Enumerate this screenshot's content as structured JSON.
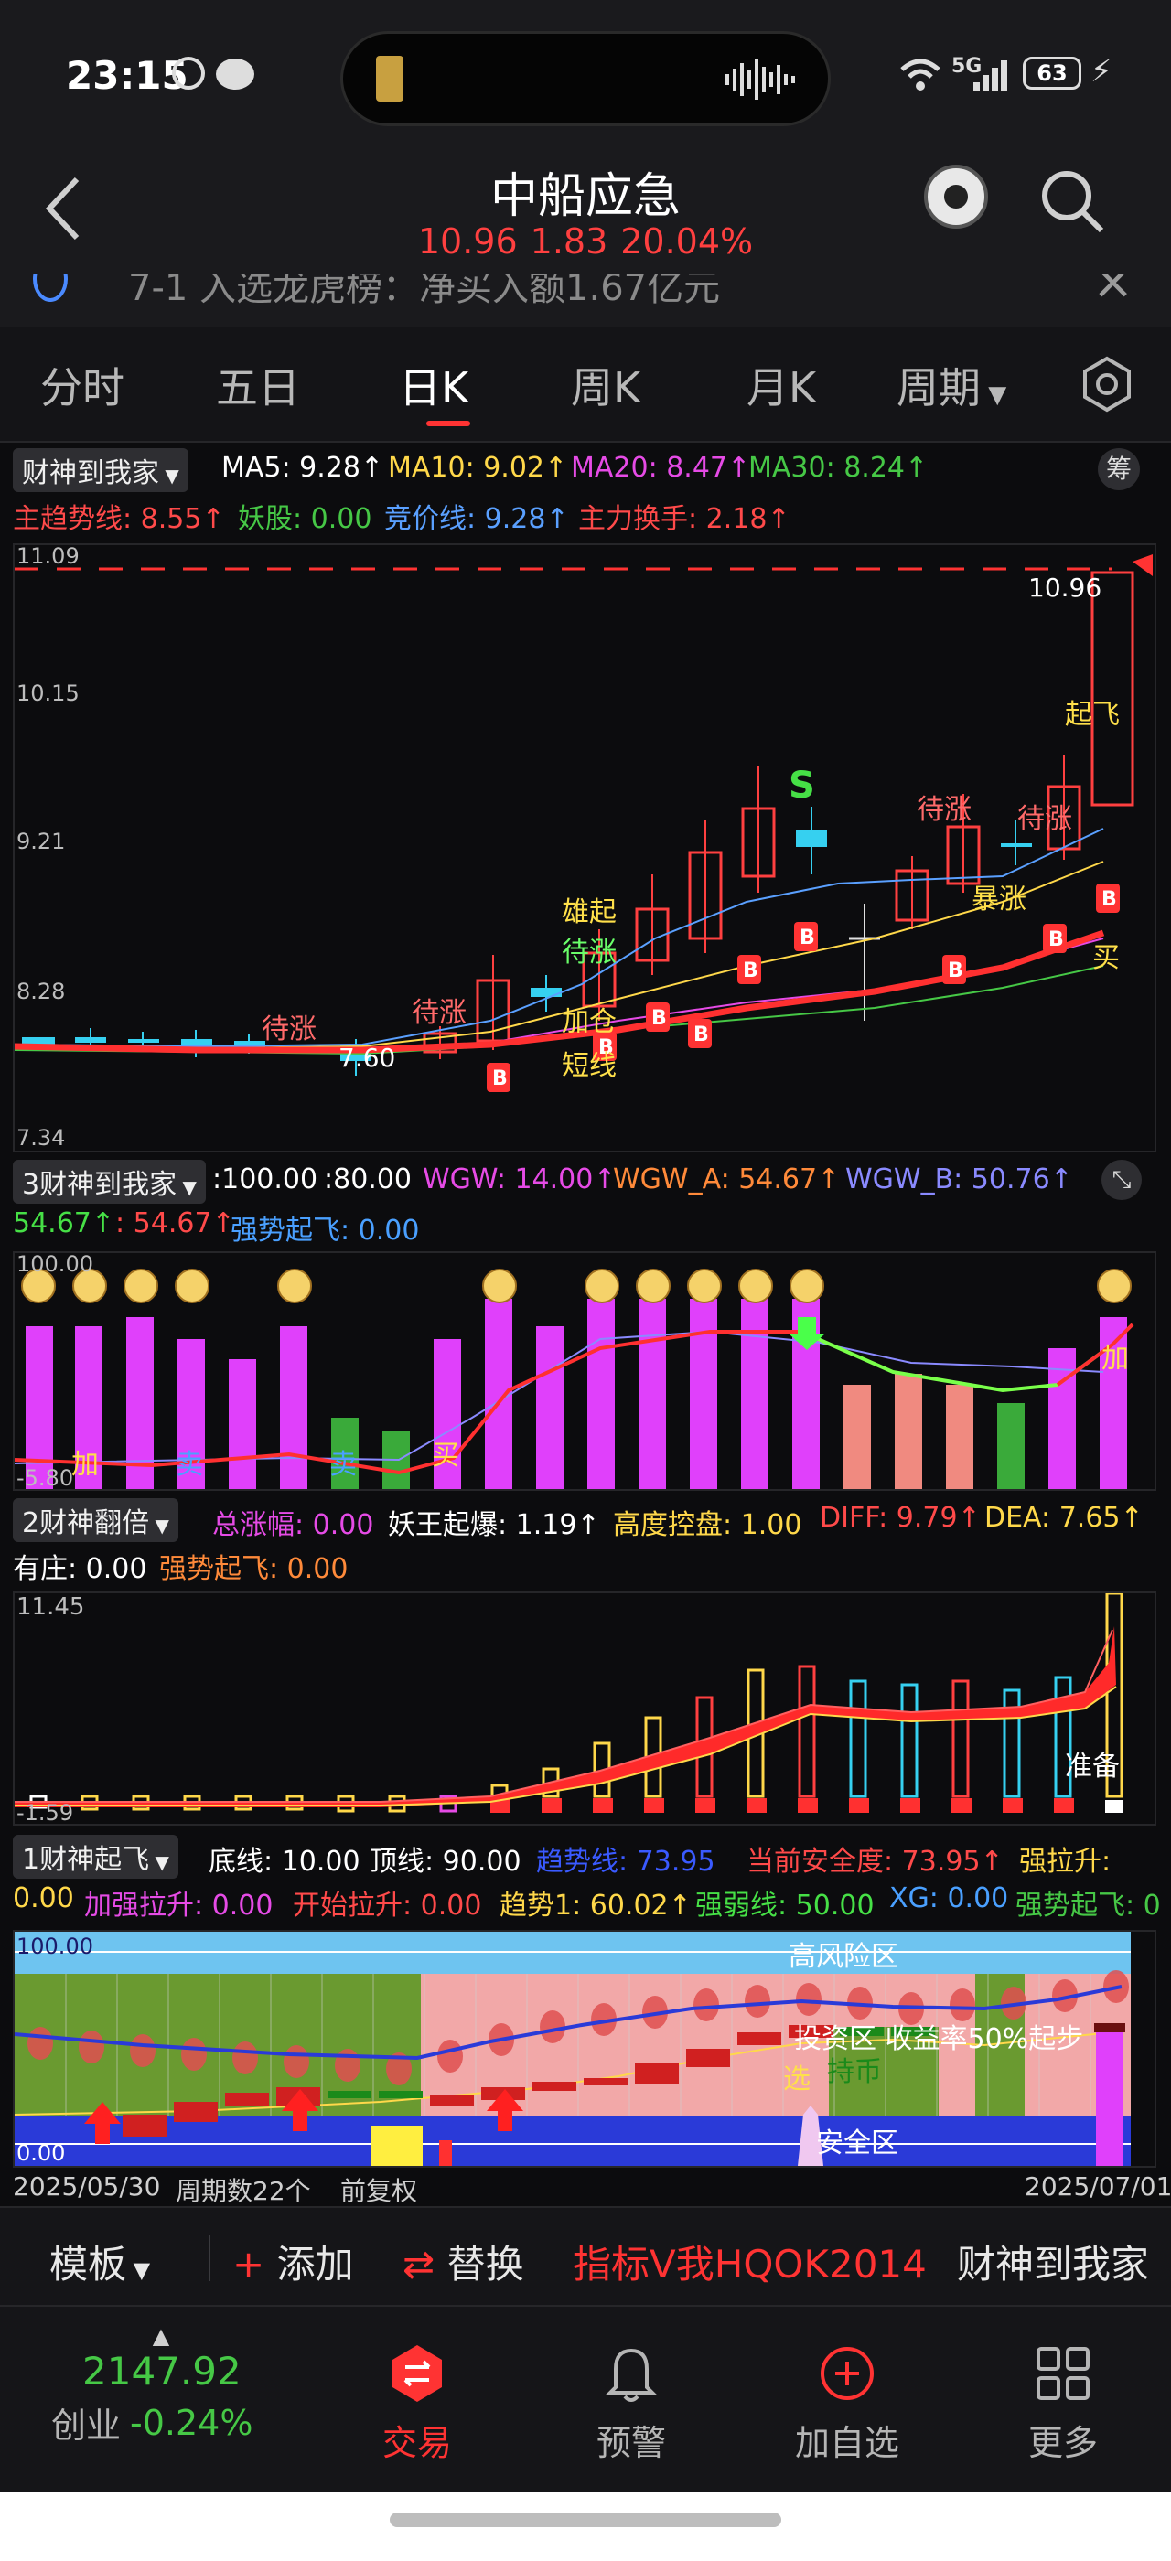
{
  "status_bar": {
    "time": "23:15",
    "network": "5G",
    "battery": "63"
  },
  "header": {
    "title": "中船应急",
    "price": "10.96",
    "change": "1.83",
    "pct": "20.04%"
  },
  "ticker": {
    "text": "7-1 入选龙虎榜：净买入额1.67亿元"
  },
  "tabs": [
    "分时",
    "五日",
    "日K",
    "周K",
    "月K",
    "周期"
  ],
  "main_panel": {
    "indicator_name": "财神到我家",
    "line1": [
      {
        "label": "MA5: 9.28↑",
        "color": "#ffffff"
      },
      {
        "label": "MA10: 9.02↑",
        "color": "#ffd84a"
      },
      {
        "label": "MA20: 8.47↑",
        "color": "#e64be6"
      },
      {
        "label": "MA30: 8.24↑",
        "color": "#46c846"
      }
    ],
    "line2": [
      {
        "label": "主趋势线: 8.55↑",
        "color": "#ff4a4a"
      },
      {
        "label": "妖股: 0.00",
        "color": "#46c846"
      },
      {
        "label": "竞价线: 9.28↑",
        "color": "#5aa0ff"
      },
      {
        "label": "主力换手: 2.18↑",
        "color": "#ff4a4a"
      }
    ],
    "badge": "筹",
    "y_ticks": [
      "11.09",
      "10.15",
      "9.21",
      "8.28",
      "7.34"
    ],
    "last_price": "10.96",
    "low_label": "7.60",
    "annotations": [
      "待涨",
      "待涨",
      "雄起",
      "待涨",
      "加仓",
      "短线",
      "待涨",
      "待涨",
      "暴涨",
      "起飞",
      "买",
      "S"
    ]
  },
  "panel2": {
    "indicator_name": "3财神到我家",
    "line1": [
      {
        "label": ":100.00",
        "color": "#ffffff"
      },
      {
        "label": ":80.00",
        "color": "#ffffff"
      },
      {
        "label": "WGW: 14.00↑",
        "color": "#e64be6"
      },
      {
        "label": "WGW_A: 54.67↑",
        "color": "#ff8a3a"
      },
      {
        "label": "WGW_B: 50.76↑",
        "color": "#8a8aff"
      }
    ],
    "line2": [
      {
        "label": "54.67↑",
        "color": "#46e046"
      },
      {
        "label": ": 54.67↑",
        "color": "#ff4a4a"
      },
      {
        "label": "强势起飞: 0.00",
        "color": "#4aa0ff"
      }
    ],
    "y_top": "100.00",
    "y_bottom": "-5.80",
    "annotations": [
      "加",
      "卖",
      "卖",
      "买",
      "加"
    ]
  },
  "panel3": {
    "indicator_name": "2财神翻倍",
    "line1": [
      {
        "label": "总涨幅: 0.00",
        "color": "#e64be6"
      },
      {
        "label": "妖王起爆: 1.19↑",
        "color": "#ffffff"
      },
      {
        "label": "高度控盘: 1.00",
        "color": "#ffd84a"
      },
      {
        "label": "DIFF: 9.79↑",
        "color": "#ff4a4a"
      },
      {
        "label": "DEA: 7.65↑",
        "color": "#ffd84a"
      }
    ],
    "line2": [
      {
        "label": "有庄: 0.00",
        "color": "#ffffff"
      },
      {
        "label": "强势起飞: 0.00",
        "color": "#ff8a3a"
      }
    ],
    "y_top": "11.45",
    "y_bottom": "-1.59",
    "annotation": "准备"
  },
  "panel4": {
    "indicator_name": "1财神起飞",
    "line1": [
      {
        "label": "底线: 10.00",
        "color": "#ffffff"
      },
      {
        "label": "顶线: 90.00",
        "color": "#ffffff"
      },
      {
        "label": "趋势线: 73.95",
        "color": "#3a5aff"
      },
      {
        "label": "当前安全度: 73.95↑",
        "color": "#ff4a4a"
      },
      {
        "label": "强拉升:",
        "color": "#ffd84a"
      }
    ],
    "line2": [
      {
        "label": "0.00",
        "color": "#ffd84a"
      },
      {
        "label": "加强拉升: 0.00",
        "color": "#e64be6"
      },
      {
        "label": "开始拉升: 0.00",
        "color": "#ff4a4a"
      },
      {
        "label": "趋势1: 60.02↑",
        "color": "#ffd84a"
      },
      {
        "label": "强弱线: 50.00",
        "color": "#46e046"
      },
      {
        "label": "XG: 0.00",
        "color": "#4aa0ff"
      },
      {
        "label": "强势起飞: 0",
        "color": "#46c846"
      }
    ],
    "y_top": "100.00",
    "y_bottom": "0.00",
    "zones": {
      "high": "高风险区",
      "mid": "投资区 收益率50%起步",
      "hold": "持币",
      "safe": "安全区",
      "select": "选"
    }
  },
  "date_bar": {
    "start": "2025/05/30",
    "period": "周期数22个",
    "adjust": "前复权",
    "end": "2025/07/01"
  },
  "toolbar": {
    "template": "模板",
    "add": "添加",
    "replace": "替换",
    "indicator": "指标V我HQOK2014",
    "custom": "财神到我家"
  },
  "bottom_nav": {
    "index_value": "2147.92",
    "index_name": "创业",
    "index_change": "-0.24%",
    "items": [
      "交易",
      "预警",
      "加自选",
      "更多"
    ]
  }
}
